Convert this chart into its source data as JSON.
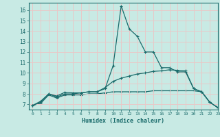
{
  "xlabel": "Humidex (Indice chaleur)",
  "bg_color": "#c8eae4",
  "grid_color": "#e8c8c8",
  "line_color": "#1a6b6b",
  "xlim": [
    -0.5,
    23
  ],
  "ylim": [
    6.5,
    16.7
  ],
  "xticks": [
    0,
    1,
    2,
    3,
    4,
    5,
    6,
    7,
    8,
    9,
    10,
    11,
    12,
    13,
    14,
    15,
    16,
    17,
    18,
    19,
    20,
    21,
    22,
    23
  ],
  "yticks": [
    7,
    8,
    9,
    10,
    11,
    12,
    13,
    14,
    15,
    16
  ],
  "line1_x": [
    0,
    1,
    2,
    3,
    4,
    5,
    6,
    7,
    8,
    9,
    10,
    11,
    12,
    13,
    14,
    15,
    16,
    17,
    18,
    19,
    20,
    21,
    22,
    23
  ],
  "line1_y": [
    6.9,
    7.3,
    8.0,
    7.8,
    8.15,
    8.1,
    8.1,
    8.2,
    8.2,
    8.5,
    10.7,
    16.4,
    14.2,
    13.5,
    12.0,
    12.0,
    10.5,
    10.5,
    10.1,
    10.1,
    8.5,
    8.2,
    7.2,
    6.7
  ],
  "line2_x": [
    0,
    1,
    2,
    3,
    4,
    5,
    6,
    7,
    8,
    9,
    10,
    11,
    12,
    13,
    14,
    15,
    16,
    17,
    18,
    19,
    20,
    21,
    22,
    23
  ],
  "line2_y": [
    6.9,
    7.2,
    8.0,
    7.7,
    8.0,
    8.0,
    8.1,
    8.2,
    8.2,
    8.6,
    9.2,
    9.5,
    9.7,
    9.9,
    10.0,
    10.15,
    10.2,
    10.3,
    10.25,
    10.2,
    8.5,
    8.2,
    7.2,
    6.7
  ],
  "line3_x": [
    0,
    1,
    2,
    3,
    4,
    5,
    6,
    7,
    8,
    9,
    10,
    11,
    12,
    13,
    14,
    15,
    16,
    17,
    18,
    19,
    20,
    21,
    22,
    23
  ],
  "line3_y": [
    6.9,
    7.1,
    7.9,
    7.6,
    7.9,
    7.9,
    7.9,
    8.0,
    8.0,
    8.1,
    8.2,
    8.2,
    8.2,
    8.2,
    8.2,
    8.3,
    8.3,
    8.3,
    8.3,
    8.3,
    8.3,
    8.2,
    7.2,
    6.7
  ]
}
